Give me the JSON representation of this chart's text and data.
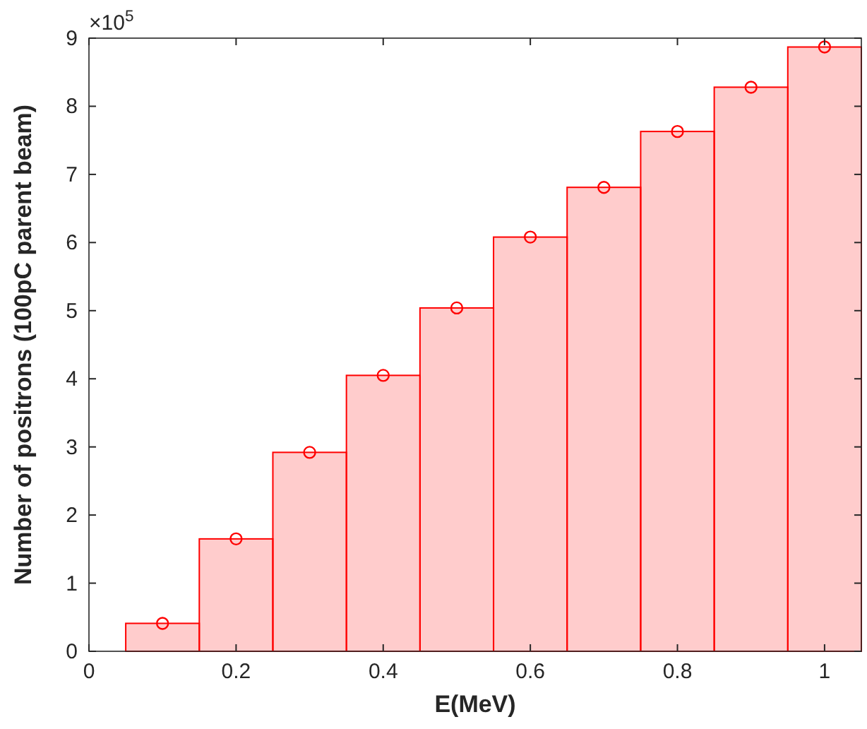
{
  "chart_data": {
    "type": "histogram",
    "xlabel": "E(MeV)",
    "ylabel": "Number of positrons (100pC parent beam)",
    "annotations": [
      "×10$^{5}$"
    ],
    "xlim": [
      0,
      1.05
    ],
    "xticks": [
      0,
      0.2,
      0.4,
      0.6,
      0.8,
      1
    ],
    "ylim": [
      0,
      9
    ],
    "yticks": [
      0,
      1,
      2,
      3,
      4,
      5,
      6,
      7,
      8,
      9
    ],
    "grid": false,
    "series": [
      {
        "color": "#ff0000",
        "bins": [
          0.05,
          0.15,
          0.25,
          0.35,
          0.45,
          0.55,
          0.65,
          0.75,
          0.85,
          0.95,
          1.05
        ],
        "values": [
          0.41,
          1.65,
          2.92,
          4.05,
          5.04,
          6.08,
          6.81,
          7.63,
          8.28,
          8.87
        ]
      },
      {
        "type": "scatter",
        "color": "#ff0000",
        "marker": "circle",
        "x": [
          0.1,
          0.2,
          0.3,
          0.4,
          0.5,
          0.6,
          0.7,
          0.8,
          0.9,
          1.0
        ],
        "values": [
          0.41,
          1.65,
          2.92,
          4.05,
          5.04,
          6.08,
          6.81,
          7.63,
          8.28,
          8.87
        ]
      }
    ]
  }
}
